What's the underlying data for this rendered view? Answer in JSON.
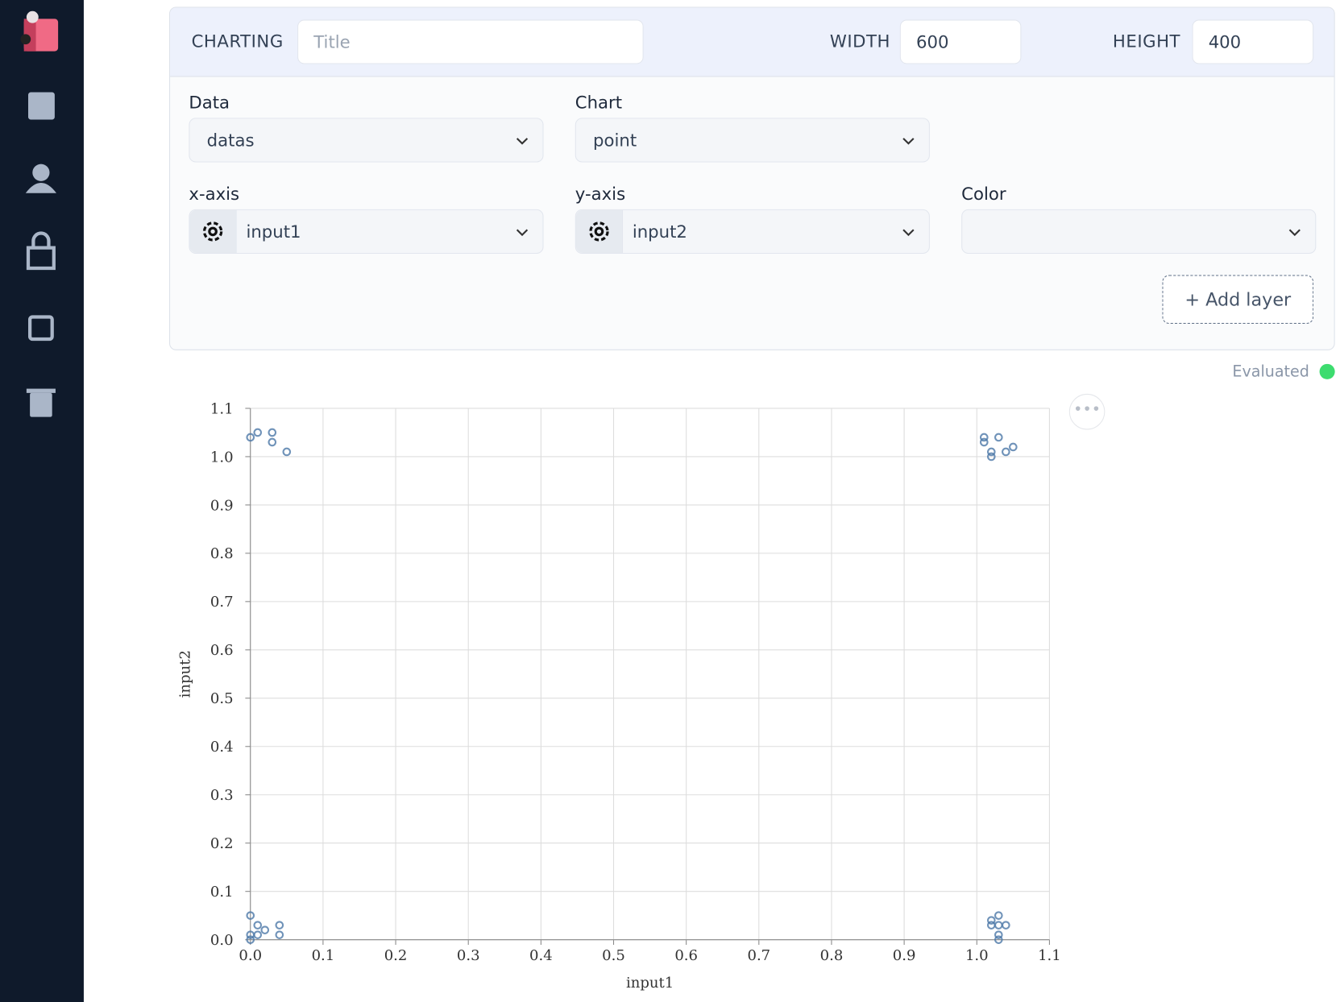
{
  "header": {
    "label": "CHARTING",
    "title_placeholder": "Title",
    "width_label": "WIDTH",
    "width_value": "600",
    "height_label": "HEIGHT",
    "height_value": "400"
  },
  "fields": {
    "data": {
      "label": "Data",
      "value": "datas"
    },
    "chart": {
      "label": "Chart",
      "value": "point"
    },
    "x_axis": {
      "label": "x-axis",
      "value": "input1"
    },
    "y_axis": {
      "label": "y-axis",
      "value": "input2"
    },
    "color": {
      "label": "Color"
    }
  },
  "add_layer": "+ Add layer",
  "status": "Evaluated",
  "chart_data": {
    "type": "scatter",
    "x_label": "input1",
    "y_label": "input2",
    "color": "#4c78a8",
    "grid": true,
    "x": [
      0,
      0.01,
      0.03,
      0.03,
      0.05,
      1.01,
      1.01,
      1.03,
      1.02,
      1.02,
      1.04,
      1.05,
      0,
      0.01,
      0.02,
      0.01,
      0,
      0,
      0.04,
      0.04,
      1.03,
      1.02,
      1.02,
      1.04,
      1.03,
      1.03,
      1.03
    ],
    "y": [
      1.04,
      1.05,
      1.05,
      1.03,
      1.01,
      1.04,
      1.03,
      1.04,
      1.01,
      1.0,
      1.01,
      1.02,
      0.05,
      0.03,
      0.02,
      0.01,
      0.01,
      0,
      0.03,
      0.01,
      0.05,
      0.04,
      0.03,
      0.03,
      0.03,
      0.01,
      0
    ],
    "xlim": [
      0,
      1.1
    ],
    "ylim": [
      0,
      1.1
    ],
    "xticks": [
      {
        "value": 0,
        "label": "0.0"
      },
      0.1,
      0.2,
      0.3,
      0.4,
      0.5,
      0.6,
      0.7,
      0.8,
      0.9,
      {
        "value": 1,
        "label": "1.0"
      },
      1.1
    ],
    "yticks": [
      {
        "value": 0,
        "label": "0.0"
      },
      0.1,
      0.2,
      0.3,
      0.4,
      0.5,
      0.6,
      0.7,
      0.8,
      0.9,
      {
        "value": 1,
        "label": "1.0"
      },
      1.1
    ]
  }
}
